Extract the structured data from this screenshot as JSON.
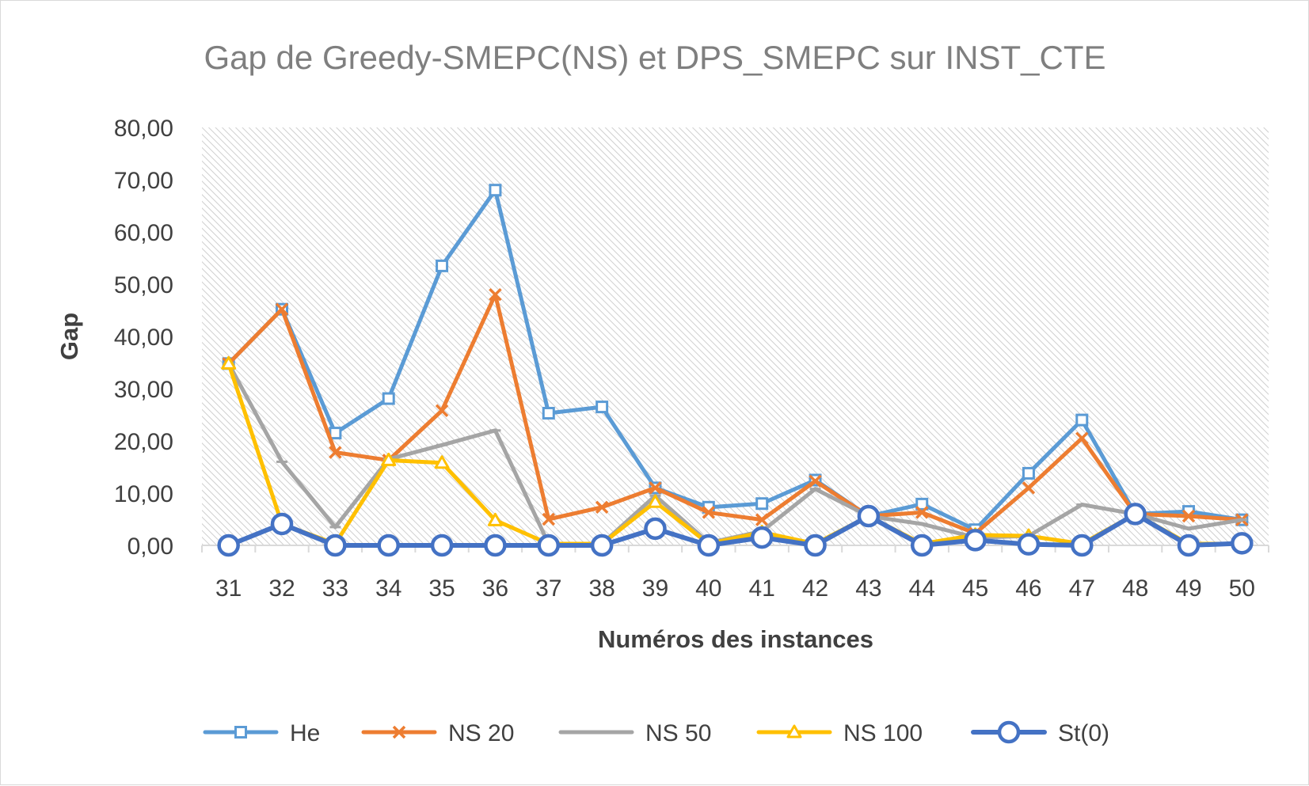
{
  "chart_data": {
    "type": "line",
    "title": "Gap de Greedy-SMEPC(NS) et DPS_SMEPC sur INST_CTE",
    "xlabel": "Numéros des instances",
    "ylabel": "Gap",
    "ylim": [
      0,
      80
    ],
    "yticks": [
      "0,00",
      "10,00",
      "20,00",
      "30,00",
      "40,00",
      "50,00",
      "60,00",
      "70,00",
      "80,00"
    ],
    "categories": [
      "31",
      "32",
      "33",
      "34",
      "35",
      "36",
      "37",
      "38",
      "39",
      "40",
      "41",
      "42",
      "43",
      "44",
      "45",
      "46",
      "47",
      "48",
      "49",
      "50"
    ],
    "grid": "hatched plot area, no gridlines",
    "legend_position": "bottom",
    "series": [
      {
        "name": "He",
        "color": "#5b9bd5",
        "marker": "square",
        "values": [
          34.8,
          45.2,
          21.5,
          28.1,
          53.5,
          68.0,
          25.3,
          26.5,
          11.0,
          7.3,
          8.0,
          12.5,
          5.6,
          7.9,
          3.0,
          13.8,
          24.0,
          6.0,
          6.5,
          4.9
        ]
      },
      {
        "name": "NS 20",
        "color": "#ed7d31",
        "marker": "x",
        "values": [
          34.8,
          45.2,
          17.8,
          16.3,
          25.8,
          48.0,
          5.0,
          7.3,
          11.0,
          6.3,
          4.9,
          12.3,
          5.6,
          6.3,
          2.3,
          11.0,
          20.5,
          6.0,
          5.6,
          4.9
        ]
      },
      {
        "name": "NS 50",
        "color": "#a5a5a5",
        "marker": "dash",
        "values": [
          34.8,
          16.0,
          3.5,
          16.5,
          19.2,
          22.0,
          0.3,
          0.3,
          9.5,
          0.5,
          2.7,
          10.8,
          5.6,
          4.1,
          1.5,
          1.8,
          7.8,
          6.0,
          3.2,
          4.9
        ]
      },
      {
        "name": "NS 100",
        "color": "#ffc000",
        "marker": "triangle",
        "values": [
          34.8,
          4.1,
          0.3,
          16.3,
          15.8,
          4.8,
          0.3,
          0.3,
          8.3,
          0.3,
          2.5,
          0.3,
          5.6,
          0.3,
          2.0,
          1.8,
          0.3,
          6.0,
          0.3,
          0.3
        ]
      },
      {
        "name": "St(0)",
        "color": "#4472c4",
        "marker": "circle",
        "values": [
          0.0,
          4.1,
          0.0,
          0.0,
          0.0,
          0.0,
          0.0,
          0.0,
          3.2,
          0.0,
          1.5,
          0.0,
          5.6,
          0.0,
          1.0,
          0.2,
          0.0,
          6.0,
          0.0,
          0.4
        ]
      }
    ]
  }
}
